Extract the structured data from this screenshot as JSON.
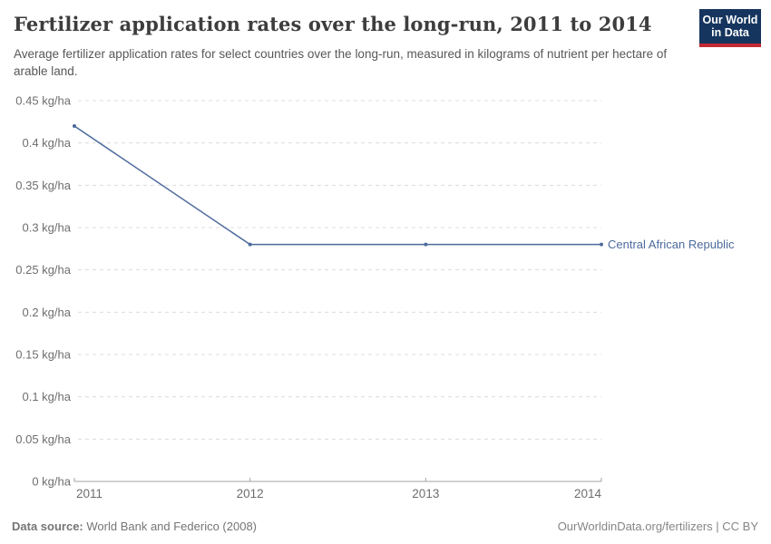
{
  "header": {
    "title": "Fertilizer application rates over the long-run, 2011 to 2014",
    "subtitle": "Average fertilizer application rates for select countries over the long-run, measured in kilograms of nutrient per hectare of arable land.",
    "logo": {
      "line1": "Our World",
      "line2": "in Data"
    }
  },
  "chart_data": {
    "type": "line",
    "title": "Fertilizer application rates over the long-run, 2011 to 2014",
    "x": [
      2011,
      2012,
      2013,
      2014
    ],
    "x_tick_labels": [
      "2011",
      "2012",
      "2013",
      "2014"
    ],
    "series": [
      {
        "name": "Central African Republic",
        "values": [
          0.42,
          0.28,
          0.28,
          0.28
        ],
        "color": "#4C6A9C"
      }
    ],
    "ylim": [
      0,
      0.45
    ],
    "ytick_step": 0.05,
    "y_unit": " kg/ha",
    "xlabel": "",
    "ylabel": "kilograms of nutrient per hectare of arable land",
    "grid": "horizontal-dashed",
    "legend_position": "end-of-line-label"
  },
  "footer": {
    "source_label": "Data source:",
    "source_value": "World Bank and Federico (2008)",
    "credit": "OurWorldinData.org/fertilizers | CC BY"
  },
  "colors": {
    "line": "#4C6A9C",
    "grid": "#DCDCDC",
    "axis": "#A3A3A3",
    "tick_label": "#6E6E6E",
    "title": "#3D3D3D",
    "subtitle": "#575757",
    "footer": "#757575",
    "logo_bg": "#16355E",
    "logo_red": "#C22932"
  }
}
